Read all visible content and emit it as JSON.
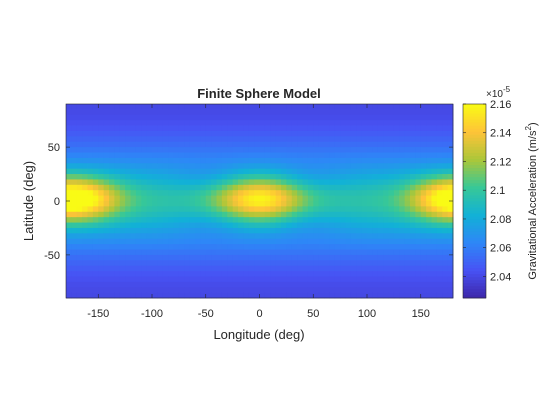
{
  "chart_data": {
    "type": "heatmap",
    "title": "Finite Sphere Model",
    "xlabel": "Longitude (deg)",
    "ylabel": "Latitude (deg)",
    "xlim": [
      -180,
      180
    ],
    "ylim": [
      -90,
      90
    ],
    "xticks": [
      -150,
      -100,
      -50,
      0,
      50,
      100,
      150
    ],
    "yticks": [
      -50,
      0,
      50
    ],
    "colorbar": {
      "label": "Gravitational Acceleration (m/s",
      "label_sup": "2",
      "label_close": ")",
      "exponent_base": "×10",
      "exponent": "-5",
      "clim": [
        2.025,
        2.16
      ],
      "ticks": [
        2.04,
        2.06,
        2.08,
        2.1,
        2.12,
        2.14,
        2.16
      ]
    },
    "field": {
      "baseline": 2.085,
      "equatorial_band_amplitude": 0.012,
      "pole_drop": 0.06,
      "peaks": [
        {
          "lon": 0,
          "lat": 2,
          "value": 2.16
        },
        {
          "lon": -170,
          "lat": 2,
          "value": 2.14
        },
        {
          "lon": 180,
          "lat": 2,
          "value": 2.14
        }
      ],
      "lows": [
        {
          "lon": -45,
          "lat": 20
        },
        {
          "lon": 45,
          "lat": 20
        },
        {
          "lon": -45,
          "lat": -20
        },
        {
          "lon": 45,
          "lat": -20
        }
      ]
    },
    "colormap": "parula"
  }
}
